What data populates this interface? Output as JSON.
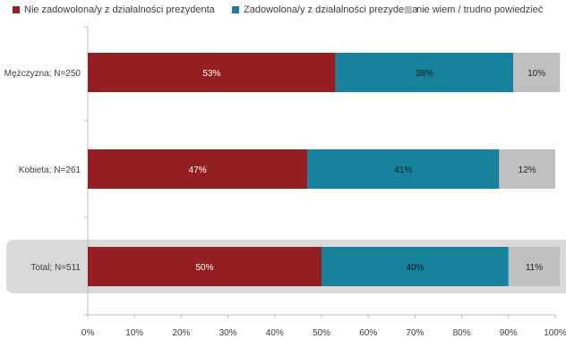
{
  "chart_data": {
    "type": "bar",
    "orientation": "horizontal",
    "stacked": true,
    "title": "",
    "xlabel": "",
    "ylabel": "",
    "categories": [
      "Mężczyzna; N=250",
      "Kobieta; N=261",
      "Total; N=511"
    ],
    "series": [
      {
        "name": "Nie zadowolona/y z działalności prezydenta",
        "color": "#952023",
        "values": [
          53,
          47,
          50
        ]
      },
      {
        "name": "Zadowolona/y z działalności prezydenta",
        "color": "#17819b",
        "values": [
          38,
          41,
          40
        ]
      },
      {
        "name": "nie wiem / trudno powiedzieć",
        "color": "#bfbfbf",
        "values": [
          10,
          12,
          11
        ]
      }
    ],
    "data_labels": [
      [
        "53%",
        "38%",
        "10%"
      ],
      [
        "47%",
        "41%",
        "12%"
      ],
      [
        "50%",
        "40%",
        "11%"
      ]
    ],
    "xlim": [
      0,
      100
    ],
    "x_ticks": [
      "0%",
      "10%",
      "20%",
      "30%",
      "40%",
      "50%",
      "60%",
      "70%",
      "80%",
      "90%",
      "100%"
    ],
    "grid": false,
    "legend_position": "top",
    "highlighted_category": "Total; N=511",
    "highlight_color": "#d9d9d9"
  }
}
